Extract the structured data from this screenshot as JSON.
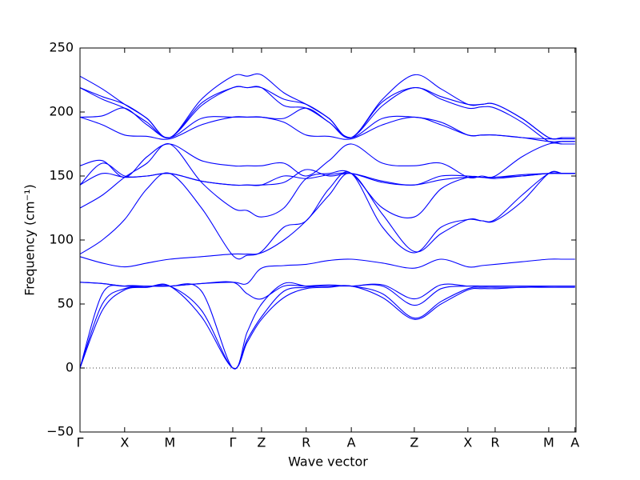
{
  "chart_data": {
    "type": "line",
    "xlabel": "Wave vector",
    "ylabel": "Frequency (cm⁻¹)",
    "xlim": [
      0,
      1
    ],
    "ylim": [
      -50,
      250
    ],
    "yticks": [
      {
        "value": -50,
        "label": "−50"
      },
      0,
      50,
      100,
      150,
      200,
      250
    ],
    "xticks": [
      {
        "value": 0,
        "label": "Γ"
      },
      {
        "value": 0.09,
        "label": "X"
      },
      {
        "value": 0.181,
        "label": "M"
      },
      {
        "value": 0.308,
        "label": "Γ"
      },
      {
        "value": 0.366,
        "label": "Z"
      },
      {
        "value": 0.456,
        "label": "R"
      },
      {
        "value": 0.547,
        "label": "A"
      },
      {
        "value": 0.674,
        "label": "Z"
      },
      {
        "value": 0.782,
        "label": "X"
      },
      {
        "value": 0.837,
        "label": "R"
      },
      {
        "value": 0.945,
        "label": "M"
      },
      {
        "value": 0.998,
        "label": "A"
      }
    ],
    "hline": 0,
    "x": [
      0,
      0.045,
      0.09,
      0.135,
      0.181,
      0.245,
      0.308,
      0.337,
      0.366,
      0.411,
      0.456,
      0.502,
      0.547,
      0.61,
      0.674,
      0.728,
      0.782,
      0.81,
      0.837,
      0.891,
      0.945,
      0.973,
      0.998
    ],
    "series": [
      {
        "color": "#0000ff",
        "values": [
          0,
          45,
          61,
          63,
          64,
          40,
          0,
          20,
          38,
          55,
          62,
          63,
          64,
          55,
          38,
          50,
          61,
          62,
          62,
          63,
          63,
          63,
          63
        ]
      },
      {
        "color": "#0000ff",
        "values": [
          0,
          50,
          62,
          63,
          64,
          45,
          0,
          22,
          40,
          60,
          63,
          64,
          64,
          58,
          39,
          52,
          62,
          63,
          63,
          63,
          64,
          64,
          64
        ]
      },
      {
        "color": "#0000ff",
        "values": [
          0,
          58,
          64,
          64,
          64,
          60,
          0,
          28,
          50,
          66,
          64,
          64,
          64,
          64,
          49,
          62,
          64,
          64,
          64,
          64,
          64,
          64,
          64
        ]
      },
      {
        "color": "#0000ff",
        "values": [
          67,
          66,
          64,
          64,
          64,
          66,
          67,
          58,
          54,
          64,
          64,
          65,
          64,
          65,
          54,
          65,
          64,
          64,
          64,
          64,
          64,
          64,
          64
        ]
      },
      {
        "color": "#0000ff",
        "values": [
          67,
          66,
          64,
          64,
          64,
          66,
          67,
          66,
          78,
          80,
          81,
          84,
          85,
          82,
          78,
          85,
          79,
          80,
          81,
          83,
          85,
          85,
          85
        ]
      },
      {
        "color": "#0000ff",
        "values": [
          87,
          82,
          79,
          82,
          85,
          87,
          89,
          89,
          90,
          100,
          115,
          135,
          152,
          120,
          91,
          105,
          116,
          115,
          115,
          130,
          152,
          152,
          152
        ]
      },
      {
        "color": "#0000ff",
        "values": [
          89,
          100,
          116,
          140,
          152,
          125,
          88,
          88,
          91,
          110,
          115,
          140,
          152,
          110,
          90,
          110,
          116,
          115,
          116,
          135,
          152,
          152,
          152
        ]
      },
      {
        "color": "#0000ff",
        "values": [
          125,
          135,
          149,
          160,
          175,
          145,
          125,
          123,
          118,
          125,
          148,
          152,
          152,
          125,
          118,
          140,
          149,
          149,
          148,
          150,
          152,
          152,
          152
        ]
      },
      {
        "color": "#0000ff",
        "values": [
          143,
          152,
          149,
          150,
          152,
          146,
          143,
          143,
          143,
          150,
          148,
          151,
          152,
          145,
          143,
          147,
          149,
          149,
          149,
          150,
          152,
          152,
          152
        ]
      },
      {
        "color": "#0000ff",
        "values": [
          143,
          160,
          150,
          150,
          152,
          146,
          143,
          143,
          143,
          145,
          155,
          150,
          152,
          146,
          143,
          150,
          150,
          149,
          149,
          151,
          152,
          152,
          152
        ]
      },
      {
        "color": "#0000ff",
        "values": [
          158,
          162,
          149,
          165,
          175,
          162,
          158,
          158,
          158,
          160,
          150,
          162,
          175,
          160,
          158,
          160,
          149,
          150,
          150,
          165,
          175,
          175,
          175
        ]
      },
      {
        "color": "#0000ff",
        "values": [
          196,
          190,
          182,
          181,
          179,
          190,
          196,
          196,
          196,
          192,
          182,
          181,
          179,
          190,
          196,
          190,
          182,
          182,
          182,
          180,
          179,
          179,
          179
        ]
      },
      {
        "color": "#0000ff",
        "values": [
          196,
          197,
          203,
          190,
          180,
          195,
          196,
          196,
          196,
          195,
          203,
          192,
          180,
          195,
          196,
          192,
          182,
          182,
          182,
          180,
          177,
          177,
          177
        ]
      },
      {
        "color": "#0000ff",
        "values": [
          219,
          210,
          203,
          192,
          180,
          205,
          219,
          219,
          219,
          205,
          203,
          192,
          180,
          205,
          219,
          210,
          203,
          204,
          203,
          192,
          177,
          177,
          177
        ]
      },
      {
        "color": "#0000ff",
        "values": [
          219,
          212,
          206,
          195,
          180,
          207,
          219,
          219,
          219,
          210,
          206,
          195,
          180,
          208,
          219,
          212,
          206,
          206,
          206,
          195,
          180,
          180,
          180
        ]
      },
      {
        "color": "#0000ff",
        "values": [
          228,
          218,
          206,
          195,
          180,
          210,
          228,
          228,
          229,
          215,
          206,
          195,
          180,
          210,
          229,
          218,
          206,
          206,
          206,
          195,
          180,
          180,
          180
        ]
      }
    ]
  }
}
